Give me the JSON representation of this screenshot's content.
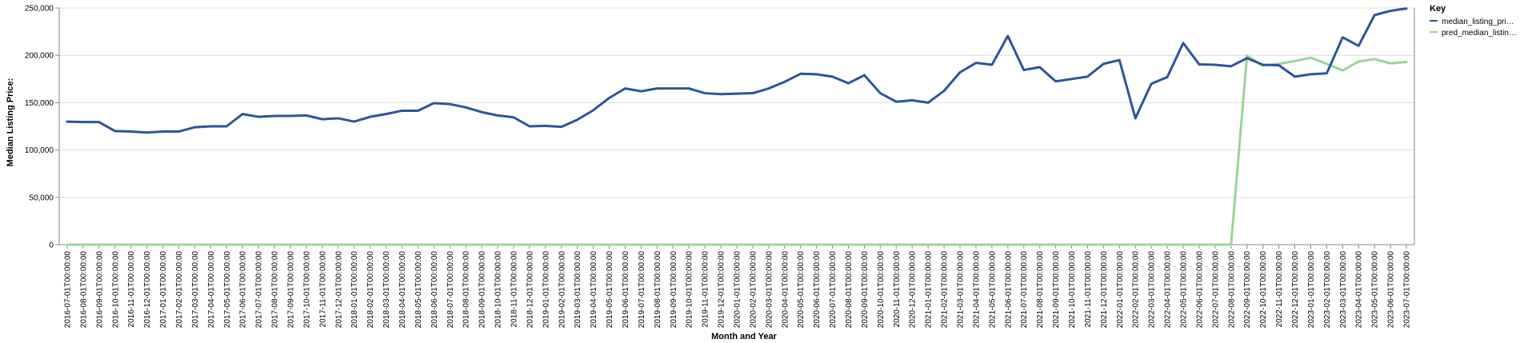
{
  "chart_data": {
    "type": "line",
    "xlabel": "Month and Year",
    "ylabel": "Median Listing Price:",
    "ylim": [
      0,
      250000
    ],
    "yticks": [
      "0",
      "50,000",
      "100,000",
      "150,000",
      "200,000",
      "250,000"
    ],
    "ytick_values": [
      0,
      50000,
      100000,
      150000,
      200000,
      250000
    ],
    "grid": true,
    "legend": {
      "title": "Key",
      "placement": "top-right",
      "entries": [
        "median_listing_pri…",
        "pred_median_listin…"
      ]
    },
    "colors": {
      "median": "#2c559c",
      "pred": "#98d594"
    },
    "x": [
      "2016-07-01T00:00:00",
      "2016-08-01T00:00:00",
      "2016-09-01T00:00:00",
      "2016-10-01T00:00:00",
      "2016-11-01T00:00:00",
      "2016-12-01T00:00:00",
      "2017-01-01T00:00:00",
      "2017-02-01T00:00:00",
      "2017-03-01T00:00:00",
      "2017-04-01T00:00:00",
      "2017-05-01T00:00:00",
      "2017-06-01T00:00:00",
      "2017-07-01T00:00:00",
      "2017-08-01T00:00:00",
      "2017-09-01T00:00:00",
      "2017-10-01T00:00:00",
      "2017-11-01T00:00:00",
      "2017-12-01T00:00:00",
      "2018-01-01T00:00:00",
      "2018-02-01T00:00:00",
      "2018-03-01T00:00:00",
      "2018-04-01T00:00:00",
      "2018-05-01T00:00:00",
      "2018-06-01T00:00:00",
      "2018-07-01T00:00:00",
      "2018-08-01T00:00:00",
      "2018-09-01T00:00:00",
      "2018-10-01T00:00:00",
      "2018-11-01T00:00:00",
      "2018-12-01T00:00:00",
      "2019-01-01T00:00:00",
      "2019-02-01T00:00:00",
      "2019-03-01T00:00:00",
      "2019-04-01T00:00:00",
      "2019-05-01T00:00:00",
      "2019-06-01T00:00:00",
      "2019-07-01T00:00:00",
      "2019-08-01T00:00:00",
      "2019-09-01T00:00:00",
      "2019-10-01T00:00:00",
      "2019-11-01T00:00:00",
      "2019-12-01T00:00:00",
      "2020-01-01T00:00:00",
      "2020-02-01T00:00:00",
      "2020-03-01T00:00:00",
      "2020-04-01T00:00:00",
      "2020-05-01T00:00:00",
      "2020-06-01T00:00:00",
      "2020-07-01T00:00:00",
      "2020-08-01T00:00:00",
      "2020-09-01T00:00:00",
      "2020-10-01T00:00:00",
      "2020-11-01T00:00:00",
      "2020-12-01T00:00:00",
      "2021-01-01T00:00:00",
      "2021-02-01T00:00:00",
      "2021-03-01T00:00:00",
      "2021-04-01T00:00:00",
      "2021-05-01T00:00:00",
      "2021-06-01T00:00:00",
      "2021-07-01T00:00:00",
      "2021-08-01T00:00:00",
      "2021-09-01T00:00:00",
      "2021-10-01T00:00:00",
      "2021-11-01T00:00:00",
      "2021-12-01T00:00:00",
      "2022-01-01T00:00:00",
      "2022-02-01T00:00:00",
      "2022-03-01T00:00:00",
      "2022-04-01T00:00:00",
      "2022-05-01T00:00:00",
      "2022-06-01T00:00:00",
      "2022-07-01T00:00:00",
      "2022-08-01T00:00:00",
      "2022-09-01T00:00:00",
      "2022-10-01T00:00:00",
      "2022-11-01T00:00:00",
      "2022-12-01T00:00:00",
      "2023-01-01T00:00:00",
      "2023-02-01T00:00:00",
      "2023-03-01T00:00:00",
      "2023-04-01T00:00:00",
      "2023-05-01T00:00:00",
      "2023-06-01T00:00:00",
      "2023-07-01T00:00:00"
    ],
    "series": [
      {
        "name": "median_listing_pri…",
        "values": [
          130000,
          129500,
          129500,
          120000,
          119500,
          118500,
          119500,
          119500,
          124000,
          125000,
          125000,
          138000,
          135000,
          136000,
          136000,
          136500,
          132500,
          133500,
          130000,
          135000,
          138000,
          141500,
          141500,
          149500,
          148500,
          145000,
          140000,
          136500,
          134500,
          125000,
          125500,
          124500,
          132000,
          142000,
          155000,
          165000,
          162000,
          165000,
          165000,
          165000,
          160000,
          159000,
          159500,
          160000,
          165000,
          172000,
          180500,
          180000,
          177500,
          170500,
          179000,
          160000,
          151000,
          152500,
          150000,
          162500,
          182000,
          192000,
          190000,
          220500,
          184500,
          187500,
          172500,
          175000,
          177500,
          191000,
          195000,
          133500,
          170000,
          177000,
          213000,
          190500,
          190000,
          188500,
          197000,
          190000,
          189500,
          177500,
          180000,
          181000,
          219000,
          210000,
          242500,
          247000,
          249500
        ]
      },
      {
        "name": "pred_median_listin…",
        "values": [
          0,
          0,
          0,
          0,
          0,
          0,
          0,
          0,
          0,
          0,
          0,
          0,
          0,
          0,
          0,
          0,
          0,
          0,
          0,
          0,
          0,
          0,
          0,
          0,
          0,
          0,
          0,
          0,
          0,
          0,
          0,
          0,
          0,
          0,
          0,
          0,
          0,
          0,
          0,
          0,
          0,
          0,
          0,
          0,
          0,
          0,
          0,
          0,
          0,
          0,
          0,
          0,
          0,
          0,
          0,
          0,
          0,
          0,
          0,
          0,
          0,
          0,
          0,
          0,
          0,
          0,
          0,
          0,
          0,
          0,
          0,
          0,
          0,
          0,
          199500,
          189000,
          191000,
          194000,
          197500,
          191000,
          184000,
          193500,
          196000,
          191500,
          193000
        ]
      }
    ]
  }
}
